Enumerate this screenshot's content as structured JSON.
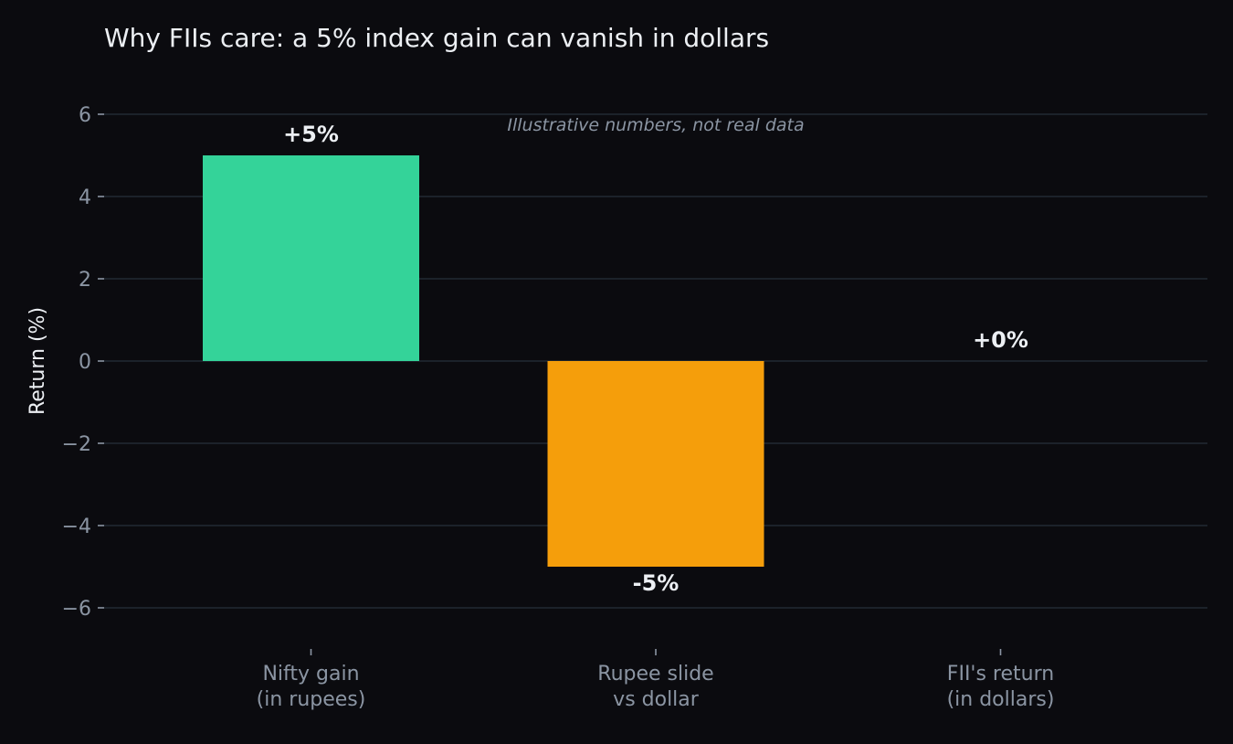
{
  "chart_data": {
    "type": "bar",
    "title": "Why FIIs care: a 5% index gain can vanish in dollars",
    "annotation": "Illustrative numbers, not real data",
    "ylabel": "Return (%)",
    "xlabel": "",
    "ylim": [
      -7,
      7
    ],
    "yticks": [
      -6,
      -4,
      -2,
      0,
      2,
      4,
      6
    ],
    "ytick_labels": [
      "−6",
      "−4",
      "−2",
      "0",
      "2",
      "4",
      "6"
    ],
    "grid": true,
    "categories": [
      [
        "Nifty gain",
        "(in rupees)"
      ],
      [
        "Rupee slide",
        "vs dollar"
      ],
      [
        "FII's return",
        "(in dollars)"
      ]
    ],
    "values": [
      5,
      -5,
      0
    ],
    "value_labels": [
      "+5%",
      "-5%",
      "+0%"
    ],
    "colors": [
      "#34d399",
      "#f59e0b",
      "#60a5fa"
    ],
    "background": "#0b0b0f"
  }
}
